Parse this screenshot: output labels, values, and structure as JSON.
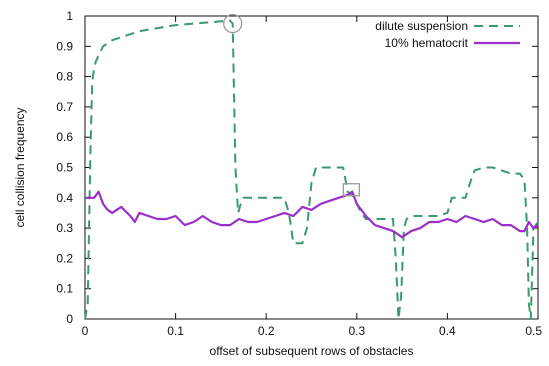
{
  "chart_data": {
    "type": "line",
    "title": "",
    "xlabel": "offset of subsequent rows of obstacles",
    "ylabel": "cell collision frequency",
    "xlim": [
      0,
      0.5
    ],
    "ylim": [
      0,
      1
    ],
    "xticks": [
      "0",
      "0.1",
      "0.2",
      "0.3",
      "0.4",
      "0.5"
    ],
    "yticks": [
      "0",
      "0.1",
      "0.2",
      "0.3",
      "0.4",
      "0.5",
      "0.6",
      "0.7",
      "0.8",
      "0.9",
      "1"
    ],
    "grid": false,
    "legend_position": "top-right",
    "series": [
      {
        "name": "dilute suspension",
        "color": "#3a9a6e",
        "style": "dashed",
        "x": [
          0.0,
          0.003,
          0.006,
          0.008,
          0.01,
          0.012,
          0.015,
          0.02,
          0.03,
          0.04,
          0.05,
          0.06,
          0.08,
          0.1,
          0.12,
          0.14,
          0.16,
          0.163,
          0.166,
          0.169,
          0.172,
          0.175,
          0.18,
          0.19,
          0.2,
          0.21,
          0.22,
          0.225,
          0.23,
          0.24,
          0.245,
          0.25,
          0.255,
          0.26,
          0.27,
          0.28,
          0.285,
          0.29,
          0.295,
          0.3,
          0.305,
          0.31,
          0.32,
          0.33,
          0.34,
          0.343,
          0.346,
          0.349,
          0.352,
          0.355,
          0.36,
          0.37,
          0.38,
          0.39,
          0.4,
          0.405,
          0.41,
          0.42,
          0.425,
          0.43,
          0.44,
          0.45,
          0.46,
          0.47,
          0.48,
          0.485,
          0.488,
          0.49,
          0.492,
          0.495,
          0.5
        ],
        "y": [
          0.0,
          0.05,
          0.55,
          0.78,
          0.83,
          0.85,
          0.87,
          0.9,
          0.92,
          0.93,
          0.94,
          0.95,
          0.96,
          0.97,
          0.975,
          0.98,
          0.985,
          0.975,
          0.5,
          0.35,
          0.38,
          0.4,
          0.4,
          0.4,
          0.4,
          0.4,
          0.4,
          0.35,
          0.25,
          0.25,
          0.3,
          0.45,
          0.5,
          0.5,
          0.5,
          0.5,
          0.5,
          0.42,
          0.41,
          0.38,
          0.35,
          0.33,
          0.33,
          0.33,
          0.33,
          0.2,
          0.0,
          0.08,
          0.3,
          0.33,
          0.34,
          0.34,
          0.34,
          0.34,
          0.35,
          0.4,
          0.4,
          0.4,
          0.45,
          0.49,
          0.5,
          0.5,
          0.49,
          0.48,
          0.48,
          0.46,
          0.3,
          0.05,
          0.0,
          0.3,
          0.32
        ]
      },
      {
        "name": "10% hematocrit",
        "color": "#9b2fc9",
        "style": "solid",
        "x": [
          0.0,
          0.01,
          0.015,
          0.02,
          0.025,
          0.03,
          0.04,
          0.05,
          0.055,
          0.06,
          0.07,
          0.08,
          0.09,
          0.1,
          0.11,
          0.12,
          0.13,
          0.14,
          0.15,
          0.16,
          0.17,
          0.18,
          0.19,
          0.2,
          0.21,
          0.22,
          0.23,
          0.24,
          0.25,
          0.26,
          0.27,
          0.28,
          0.29,
          0.295,
          0.3,
          0.31,
          0.32,
          0.33,
          0.34,
          0.35,
          0.36,
          0.37,
          0.38,
          0.39,
          0.4,
          0.41,
          0.42,
          0.43,
          0.44,
          0.45,
          0.46,
          0.47,
          0.48,
          0.485,
          0.49,
          0.495,
          0.5
        ],
        "y": [
          0.4,
          0.4,
          0.42,
          0.38,
          0.36,
          0.35,
          0.37,
          0.34,
          0.32,
          0.35,
          0.34,
          0.33,
          0.33,
          0.34,
          0.31,
          0.32,
          0.34,
          0.32,
          0.31,
          0.31,
          0.33,
          0.32,
          0.32,
          0.33,
          0.34,
          0.35,
          0.34,
          0.37,
          0.36,
          0.38,
          0.39,
          0.4,
          0.41,
          0.42,
          0.38,
          0.34,
          0.31,
          0.3,
          0.29,
          0.27,
          0.29,
          0.3,
          0.32,
          0.32,
          0.33,
          0.32,
          0.34,
          0.33,
          0.32,
          0.33,
          0.31,
          0.31,
          0.29,
          0.29,
          0.32,
          0.3,
          0.31
        ]
      }
    ],
    "annotations": [
      {
        "shape": "circle",
        "x": 0.163,
        "y": 0.975,
        "color": "#9a9a9a"
      },
      {
        "shape": "square",
        "x": 0.294,
        "y": 0.42,
        "color": "#9a9a9a"
      }
    ]
  }
}
